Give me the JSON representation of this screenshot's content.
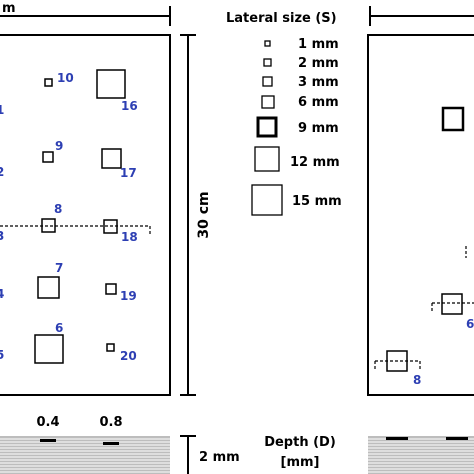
{
  "top_left_label": "m",
  "legend": {
    "title": "Lateral size (S)",
    "items": [
      {
        "label": "1 mm"
      },
      {
        "label": "2 mm"
      },
      {
        "label": "3 mm"
      },
      {
        "label": "6 mm"
      },
      {
        "label": "9 mm"
      },
      {
        "label": "12 mm"
      },
      {
        "label": "15 mm"
      }
    ]
  },
  "height_label": "30 cm",
  "thickness_label": "2 mm",
  "depth_label_line1": "Depth (D)",
  "depth_label_line2": "[mm]",
  "depth_ticks": [
    "0.4",
    "0.8"
  ],
  "left_panel": {
    "defects": [
      {
        "id": "10"
      },
      {
        "id": "16"
      },
      {
        "id": "9"
      },
      {
        "id": "17"
      },
      {
        "id": "8"
      },
      {
        "id": "18"
      },
      {
        "id": "7"
      },
      {
        "id": "19"
      },
      {
        "id": "6"
      },
      {
        "id": "20"
      }
    ],
    "cut_off_labels": [
      "1",
      "2",
      "3",
      "4",
      "5"
    ]
  },
  "right_panel": {
    "defects": [
      {
        "id": "6"
      },
      {
        "id": "8"
      }
    ]
  }
}
